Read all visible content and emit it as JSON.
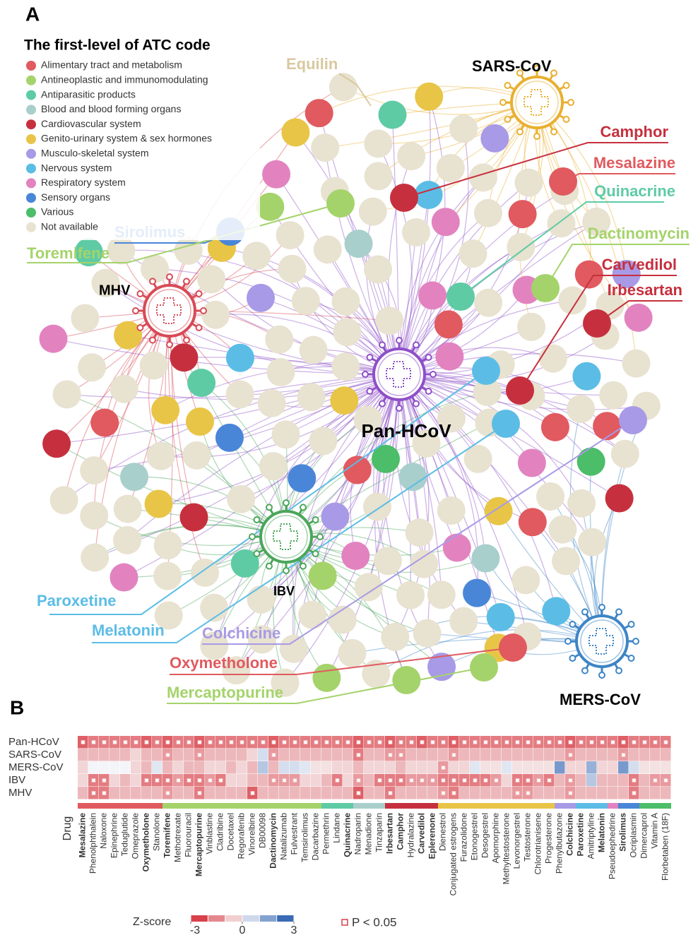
{
  "panel_a": {
    "label": "A",
    "legend": {
      "title": "The first-level of ATC code",
      "items": [
        {
          "label": "Alimentary tract and metabolism",
          "color": "#e05a5f"
        },
        {
          "label": "Antineoplastic and immunomodulating",
          "color": "#a5d36b"
        },
        {
          "label": "Antiparasitic products",
          "color": "#5ecba5"
        },
        {
          "label": "Blood and blood forming organs",
          "color": "#a8cfcc"
        },
        {
          "label": "Cardiovascular system",
          "color": "#c6303e"
        },
        {
          "label": "Genito-urinary system & sex hormones",
          "color": "#e8c547"
        },
        {
          "label": "Musculo-skeletal system",
          "color": "#a89ae6"
        },
        {
          "label": "Nervous system",
          "color": "#5bbde6"
        },
        {
          "label": "Respiratory system",
          "color": "#e283c0"
        },
        {
          "label": "Sensory organs",
          "color": "#4a86d8"
        },
        {
          "label": "Various",
          "color": "#4cbd68"
        },
        {
          "label": "Not available",
          "color": "#e8e2d0"
        }
      ]
    },
    "viruses": [
      {
        "name": "SARS-CoV",
        "color": "#e8b030"
      },
      {
        "name": "MHV",
        "color": "#d84a55"
      },
      {
        "name": "Pan-HCoV",
        "color": "#8e4fc8"
      },
      {
        "name": "IBV",
        "color": "#4aa65a"
      },
      {
        "name": "MERS-CoV",
        "color": "#3d85c6"
      }
    ],
    "callouts": [
      {
        "name": "Equilin",
        "color": "#d9c9a0"
      },
      {
        "name": "Camphor",
        "color": "#c6303e"
      },
      {
        "name": "Mesalazine",
        "color": "#e05a5f"
      },
      {
        "name": "Quinacrine",
        "color": "#5ecba5"
      },
      {
        "name": "Dactinomycin",
        "color": "#a5d36b"
      },
      {
        "name": "Carvedilol",
        "color": "#c6303e"
      },
      {
        "name": "Irbesartan",
        "color": "#c6303e"
      },
      {
        "name": "Sirolimus",
        "color": "#4a86d8"
      },
      {
        "name": "Toremifene",
        "color": "#a5d36b"
      },
      {
        "name": "Paroxetine",
        "color": "#5bbde6"
      },
      {
        "name": "Melatonin",
        "color": "#5bbde6"
      },
      {
        "name": "Colchicine",
        "color": "#a89ae6"
      },
      {
        "name": "Oxymetholone",
        "color": "#e05a5f"
      },
      {
        "name": "Mercaptopurine",
        "color": "#a5d36b"
      }
    ]
  },
  "panel_b": {
    "label": "B",
    "drug_axis_label": "Drug",
    "groups": [
      {
        "color": "#e05a5f",
        "drugs": [
          {
            "name": "Mesalazine",
            "bold": true
          },
          {
            "name": "Phenolphthalein",
            "bold": false
          },
          {
            "name": "Naloxone",
            "bold": false
          },
          {
            "name": "Epinephrine",
            "bold": false
          },
          {
            "name": "Teduglutide",
            "bold": false
          },
          {
            "name": "Omeprazole",
            "bold": false
          },
          {
            "name": "Oxymetholone",
            "bold": true
          },
          {
            "name": "Stanolone",
            "bold": false
          }
        ]
      },
      {
        "color": "#a5d36b",
        "drugs": [
          {
            "name": "Toremifene",
            "bold": true
          },
          {
            "name": "Methotrexate",
            "bold": false
          },
          {
            "name": "Fluorouracil",
            "bold": false
          },
          {
            "name": "Mercaptopurine",
            "bold": true
          },
          {
            "name": "Vinblastine",
            "bold": false
          },
          {
            "name": "Cladribine",
            "bold": false
          },
          {
            "name": "Docetaxel",
            "bold": false
          },
          {
            "name": "Regorafenib",
            "bold": false
          },
          {
            "name": "Vinorelbine",
            "bold": false
          },
          {
            "name": "DB00098",
            "bold": false
          },
          {
            "name": "Dactinomycin",
            "bold": true
          },
          {
            "name": "Natalizumab",
            "bold": false
          },
          {
            "name": "Fulvestrant",
            "bold": false
          },
          {
            "name": "Temsirolimus",
            "bold": false
          },
          {
            "name": "Dacarbazine",
            "bold": false
          }
        ]
      },
      {
        "color": "#5ecba5",
        "drugs": [
          {
            "name": "Permethrin",
            "bold": false
          },
          {
            "name": "Lindane",
            "bold": false
          },
          {
            "name": "Quinacrine",
            "bold": true
          }
        ]
      },
      {
        "color": "#a8cfcc",
        "drugs": [
          {
            "name": "Nadroparin",
            "bold": false
          },
          {
            "name": "Menadione",
            "bold": false
          },
          {
            "name": "Tinzaparin",
            "bold": false
          }
        ]
      },
      {
        "color": "#c6303e",
        "drugs": [
          {
            "name": "Irbesartan",
            "bold": true
          },
          {
            "name": "Camphor",
            "bold": true
          },
          {
            "name": "Hydralazine",
            "bold": false
          },
          {
            "name": "Carvedilol",
            "bold": true
          },
          {
            "name": "Eplerenone",
            "bold": true
          }
        ]
      },
      {
        "color": "#e8c547",
        "drugs": [
          {
            "name": "Dienestrol",
            "bold": false
          },
          {
            "name": "Conjugated estrogens",
            "bold": false
          },
          {
            "name": "Furazolidone",
            "bold": false
          },
          {
            "name": "Etonogestrel",
            "bold": false
          },
          {
            "name": "Desogestrel",
            "bold": false
          },
          {
            "name": "Apomorphine",
            "bold": false
          },
          {
            "name": "Methyltestosterone",
            "bold": false
          },
          {
            "name": "Levonorgestrel",
            "bold": false
          },
          {
            "name": "Testosterone",
            "bold": false
          },
          {
            "name": "Chlorotrianisene",
            "bold": false
          },
          {
            "name": "Progesterone",
            "bold": false
          }
        ]
      },
      {
        "color": "#a89ae6",
        "drugs": [
          {
            "name": "Phenylbutazone",
            "bold": false
          },
          {
            "name": "Colchicine",
            "bold": true
          }
        ]
      },
      {
        "color": "#5bbde6",
        "drugs": [
          {
            "name": "Paroxetine",
            "bold": true
          },
          {
            "name": "Amitriptyline",
            "bold": false
          },
          {
            "name": "Melatonin",
            "bold": true
          }
        ]
      },
      {
        "color": "#e283c0",
        "drugs": [
          {
            "name": "Pseudoephedrine",
            "bold": false
          }
        ]
      },
      {
        "color": "#4a86d8",
        "drugs": [
          {
            "name": "Sirolimus",
            "bold": true
          },
          {
            "name": "Ocriplasmin",
            "bold": false
          }
        ]
      },
      {
        "color": "#4cbd68",
        "drugs": [
          {
            "name": "Dimercaprol",
            "bold": false
          },
          {
            "name": "Vitamin A",
            "bold": false
          },
          {
            "name": "Florbetaben (18F)",
            "bold": false
          }
        ]
      }
    ],
    "rows": [
      {
        "name": "Pan-HCoV",
        "z": [
          -2.5,
          -2,
          -2,
          -2,
          -2,
          -2,
          -2.5,
          -2,
          -2.5,
          -2,
          -2,
          -2.5,
          -2,
          -2,
          -2,
          -2,
          -2,
          -2,
          -2.5,
          -2,
          -2,
          -2,
          -2,
          -2,
          -2,
          -2,
          -2.5,
          -2,
          -2,
          -2.5,
          -2,
          -2,
          -2.5,
          -2,
          -2,
          -2.5,
          -2,
          -2,
          -2,
          -2,
          -2,
          -2,
          -2,
          -2,
          -2,
          -2,
          -2.5,
          -2,
          -2,
          -2,
          -2,
          -2.5,
          -2,
          -2,
          -2,
          -2
        ],
        "significant": [
          true,
          true,
          true,
          true,
          true,
          true,
          true,
          true,
          true,
          true,
          true,
          true,
          true,
          true,
          true,
          true,
          true,
          true,
          true,
          true,
          true,
          true,
          true,
          true,
          true,
          true,
          true,
          true,
          true,
          true,
          true,
          true,
          true,
          true,
          true,
          true,
          true,
          true,
          true,
          true,
          true,
          true,
          true,
          true,
          true,
          true,
          true,
          true,
          true,
          true,
          true,
          true,
          true,
          true,
          true,
          true
        ]
      },
      {
        "name": "SARS-CoV",
        "z": [
          -1,
          -1,
          -1,
          -1,
          -1,
          -0.5,
          -1,
          -1,
          -1.5,
          -1,
          -1,
          -1.5,
          -1,
          -1,
          -1,
          -1,
          -0.5,
          0.5,
          -1.5,
          -1,
          -1,
          -1,
          -1,
          -1,
          -1,
          -1,
          -2,
          -1,
          -1,
          -1.5,
          -1.5,
          -1,
          -1,
          -1,
          -1,
          -1.5,
          -1,
          -1,
          -1,
          -1,
          -1,
          -1,
          -1,
          -1,
          -1,
          -1,
          -1.5,
          -1,
          -1,
          -1,
          -1,
          -1.5,
          -1,
          -1,
          -1,
          -1
        ],
        "significant": [
          false,
          false,
          false,
          false,
          false,
          false,
          false,
          false,
          true,
          false,
          false,
          true,
          false,
          false,
          false,
          false,
          false,
          false,
          true,
          false,
          false,
          false,
          false,
          false,
          false,
          false,
          true,
          false,
          false,
          true,
          true,
          false,
          false,
          false,
          false,
          true,
          false,
          false,
          false,
          false,
          false,
          false,
          false,
          false,
          false,
          false,
          true,
          false,
          false,
          false,
          false,
          true,
          false,
          false,
          false,
          false
        ]
      },
      {
        "name": "MERS-CoV",
        "z": [
          -0.5,
          0,
          0,
          0,
          0,
          -0.5,
          -1,
          0.3,
          -1,
          -0.5,
          -1,
          -1,
          -0.5,
          -0.5,
          -1,
          -0.5,
          -1,
          1,
          -1,
          0.5,
          0.5,
          0.3,
          -0.3,
          -0.3,
          -0.5,
          -0.5,
          -1,
          -0.5,
          -0.5,
          -0.5,
          -1,
          -0.5,
          -0.5,
          -0.5,
          -1.5,
          -0.5,
          -0.5,
          0.3,
          -0.3,
          -0.3,
          0.3,
          -0.3,
          -0.3,
          -0.3,
          -0.3,
          2,
          -0.5,
          -0.5,
          1.5,
          -0.5,
          -0.5,
          2,
          0.5,
          -0.3,
          -0.3,
          -0.3
        ],
        "significant": [
          false,
          false,
          false,
          false,
          false,
          false,
          false,
          false,
          false,
          false,
          false,
          false,
          false,
          false,
          false,
          false,
          false,
          false,
          false,
          false,
          false,
          false,
          false,
          false,
          false,
          false,
          false,
          false,
          false,
          false,
          false,
          false,
          false,
          false,
          true,
          false,
          false,
          false,
          false,
          false,
          false,
          false,
          false,
          false,
          false,
          false,
          false,
          false,
          false,
          false,
          false,
          false,
          false,
          false,
          false,
          false
        ]
      },
      {
        "name": "IBV",
        "z": [
          -0.5,
          -2,
          -2,
          -0.5,
          -1,
          -0.5,
          -2,
          -2,
          -2,
          -1.5,
          -2,
          -2,
          -1.5,
          -2,
          -0.5,
          -0.5,
          -1,
          -1,
          -1.5,
          -1.5,
          -1.5,
          -0.5,
          -0.5,
          -1,
          -2,
          -0.5,
          -1.5,
          -1,
          -2,
          -2,
          -2,
          -1.5,
          -1.5,
          -1.5,
          -2,
          -2,
          -2,
          -2,
          -2,
          -1.5,
          -0.5,
          -2,
          -2,
          -1.5,
          -2,
          -1,
          -1.5,
          -1,
          1,
          -1,
          -1,
          -1,
          -2,
          -1,
          -1.5,
          -1.5
        ],
        "significant": [
          false,
          true,
          true,
          false,
          false,
          false,
          true,
          true,
          true,
          true,
          true,
          true,
          true,
          true,
          false,
          false,
          false,
          false,
          true,
          true,
          true,
          false,
          false,
          false,
          true,
          false,
          true,
          false,
          true,
          true,
          true,
          true,
          true,
          true,
          true,
          true,
          true,
          true,
          true,
          true,
          false,
          true,
          true,
          true,
          true,
          false,
          true,
          false,
          false,
          false,
          false,
          false,
          true,
          false,
          true,
          true
        ]
      },
      {
        "name": "MHV",
        "z": [
          -1,
          -2,
          -2,
          -1,
          -1,
          -1,
          -1,
          -1,
          -1.5,
          -1,
          -1,
          -2,
          -1,
          -1,
          -1,
          -1,
          -2.5,
          -1,
          -1,
          -1,
          -1,
          -1,
          -1,
          -1,
          -1,
          -1,
          -2.5,
          -1,
          -1,
          -2,
          -1,
          -1,
          -1,
          -1,
          -1.5,
          -2,
          -1,
          -1,
          -1,
          -1,
          -1,
          -1.5,
          -1.5,
          -1,
          -1,
          -1,
          -1.5,
          -1,
          -1,
          -1,
          -1,
          -1,
          -2,
          -1,
          -1,
          -1
        ],
        "significant": [
          false,
          true,
          true,
          false,
          false,
          false,
          false,
          false,
          true,
          false,
          false,
          true,
          false,
          false,
          false,
          false,
          true,
          false,
          false,
          false,
          false,
          false,
          false,
          false,
          false,
          false,
          true,
          false,
          false,
          true,
          false,
          false,
          false,
          false,
          true,
          true,
          false,
          false,
          false,
          false,
          false,
          true,
          true,
          false,
          false,
          false,
          true,
          false,
          false,
          false,
          false,
          false,
          true,
          false,
          false,
          false
        ]
      }
    ],
    "colorbar": {
      "title": "Z-score",
      "lim": [
        -3,
        3
      ],
      "ticks": [
        -3,
        0,
        3
      ],
      "neg_color": "#d9414a",
      "pos_color": "#3a6bb5"
    },
    "sig_legend": "P < 0.05"
  }
}
